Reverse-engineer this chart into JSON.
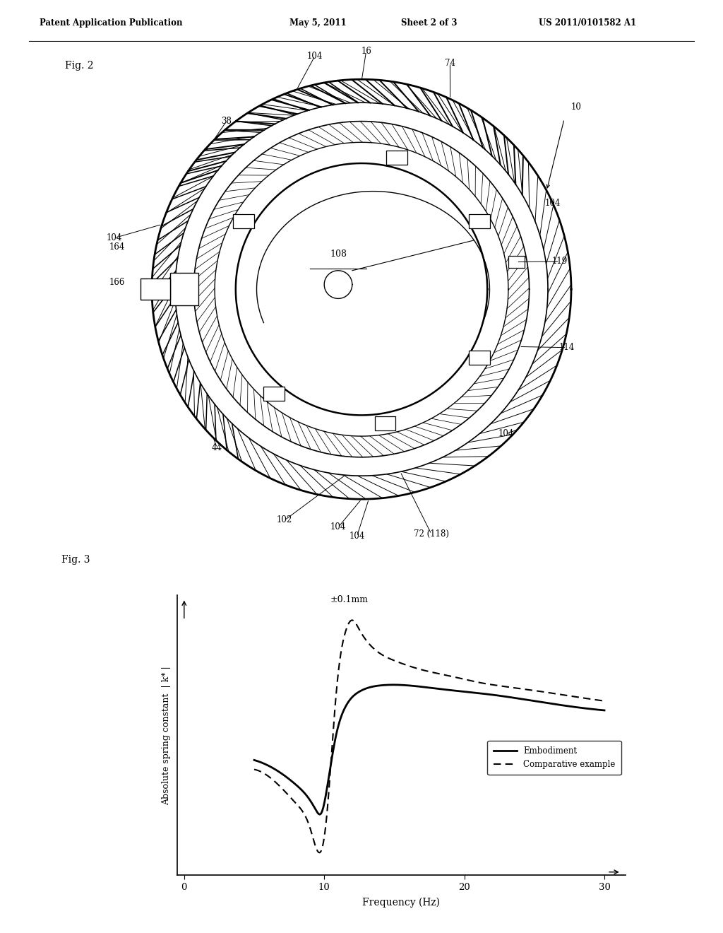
{
  "background_color": "#ffffff",
  "header_text": "Patent Application Publication",
  "header_date": "May 5, 2011",
  "header_sheet": "Sheet 2 of 3",
  "header_patent": "US 2011/0101582 A1",
  "fig2_label": "Fig. 2",
  "fig3_label": "Fig. 3",
  "graph_annotation": "±0.1mm",
  "xlabel": "Frequency (Hz)",
  "ylabel": "Absolute spring constant  | k* |",
  "xticks": [
    0,
    10,
    20,
    30
  ],
  "legend_embodiment": "Embodiment",
  "legend_comparative": "Comparative example",
  "embodiment_x": [
    5.0,
    6.5,
    8.0,
    9.0,
    9.4,
    9.8,
    10.2,
    10.8,
    11.5,
    12.5,
    14.0,
    16.0,
    18.0,
    20.0,
    22.0,
    25.0,
    28.0,
    30.0
  ],
  "embodiment_y": [
    0.55,
    0.52,
    0.47,
    0.42,
    0.39,
    0.38,
    0.46,
    0.62,
    0.72,
    0.77,
    0.79,
    0.79,
    0.78,
    0.77,
    0.76,
    0.74,
    0.72,
    0.71
  ],
  "comparative_x": [
    5.0,
    6.5,
    8.0,
    9.0,
    9.4,
    9.8,
    10.2,
    10.6,
    11.0,
    11.5,
    12.0,
    12.5,
    13.5,
    15.0,
    17.0,
    19.0,
    21.0,
    24.0,
    27.0,
    30.0
  ],
  "comparative_y": [
    0.52,
    0.48,
    0.41,
    0.33,
    0.27,
    0.26,
    0.38,
    0.62,
    0.83,
    0.96,
    1.0,
    0.97,
    0.91,
    0.87,
    0.84,
    0.82,
    0.8,
    0.78,
    0.76,
    0.74
  ]
}
